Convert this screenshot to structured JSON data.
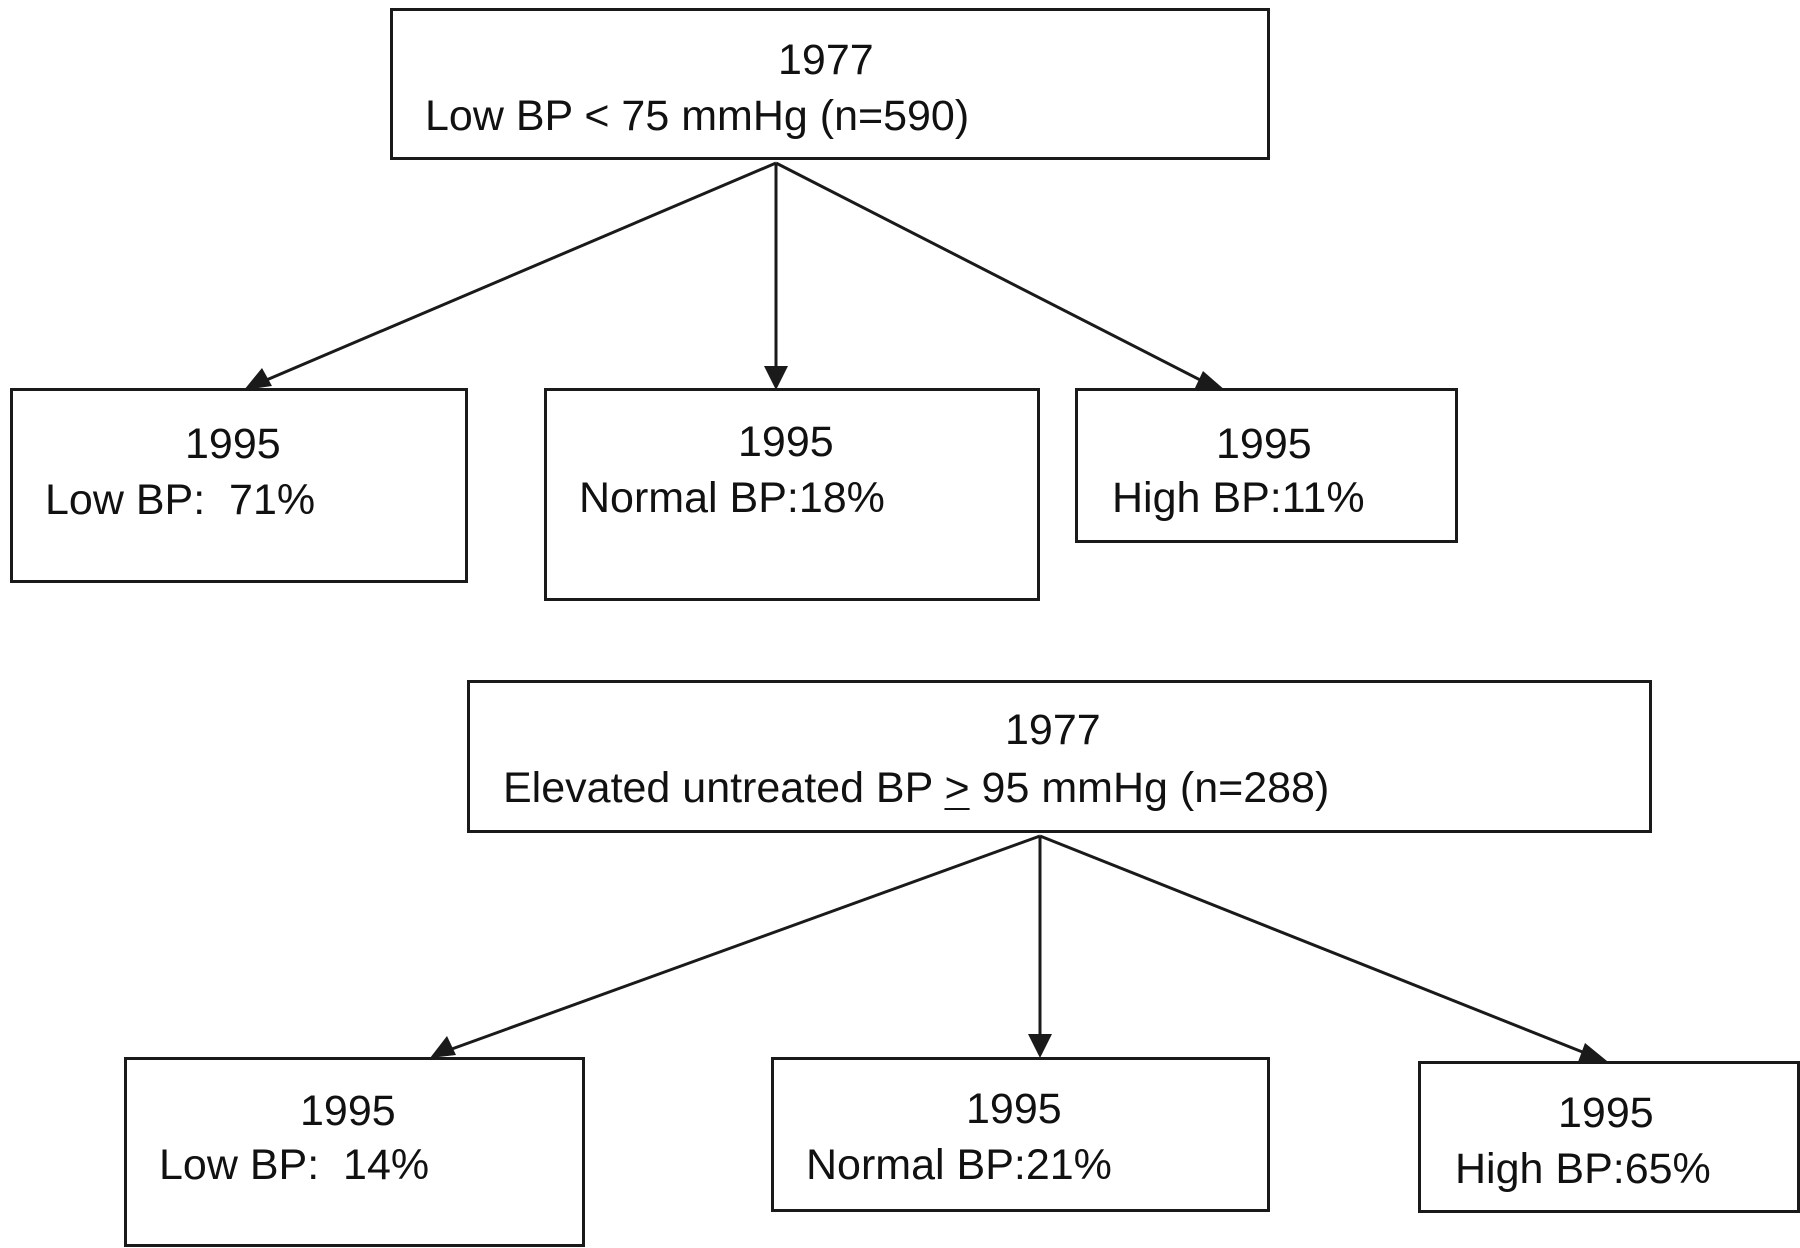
{
  "diagrams": [
    {
      "root": {
        "year": "1977",
        "label": "Low BP < 75 mmHg (n=590)"
      },
      "children": [
        {
          "year": "1995",
          "label": "Low BP:  71%"
        },
        {
          "year": "1995",
          "label": "Normal BP:18%"
        },
        {
          "year": "1995",
          "label": "High BP:11%"
        }
      ]
    },
    {
      "root": {
        "year": "1977",
        "label_pre": "Elevated untreated BP ",
        "label_sym": ">",
        "label_post": " 95 mmHg (n=288)"
      },
      "children": [
        {
          "year": "1995",
          "label": "Low BP:  14%"
        },
        {
          "year": "1995",
          "label": "Normal BP:21%"
        },
        {
          "year": "1995",
          "label": "High BP:65%"
        }
      ]
    }
  ]
}
